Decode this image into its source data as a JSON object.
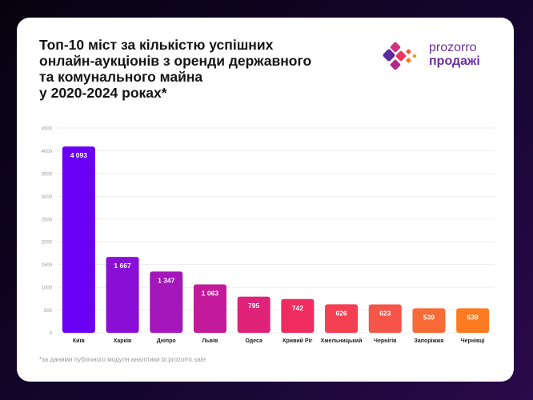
{
  "title_lines": [
    "Топ-10 міст за кількістю успішних",
    "онлайн-аукціонів з оренди державного",
    "та комунального майна",
    "у 2020-2024 роках*"
  ],
  "logo": {
    "line1": "prozorro",
    "line2": "продажі"
  },
  "footnote": "*за даними публічного модуля аналітики bi.prozorro.sale",
  "colors": {
    "background": "#0d0520",
    "card": "#ffffff",
    "bar_gradient": [
      "#6a00f4",
      "#8a0fd6",
      "#a417bb",
      "#c21a9b",
      "#de2379",
      "#ee2c60",
      "#f53f53",
      "#f6554a",
      "#f86a36",
      "#fb7a22"
    ],
    "logo": "#6b2ea6"
  },
  "chart_data": {
    "type": "bar",
    "categories": [
      "Київ",
      "Харків",
      "Дніпро",
      "Львів",
      "Одеса",
      "Кривий Ріг",
      "Хмельницький",
      "Чернігів",
      "Запоріжжя",
      "Чернівці"
    ],
    "values": [
      4093,
      1667,
      1347,
      1063,
      795,
      742,
      626,
      623,
      539,
      538
    ],
    "value_labels": [
      "4 093",
      "1 667",
      "1 347",
      "1 063",
      "795",
      "742",
      "626",
      "623",
      "539",
      "538"
    ],
    "yticks": [
      0,
      500,
      1000,
      1500,
      2000,
      2500,
      3000,
      3500,
      4000,
      4500
    ],
    "ylim": [
      0,
      4500
    ],
    "grid": true
  }
}
